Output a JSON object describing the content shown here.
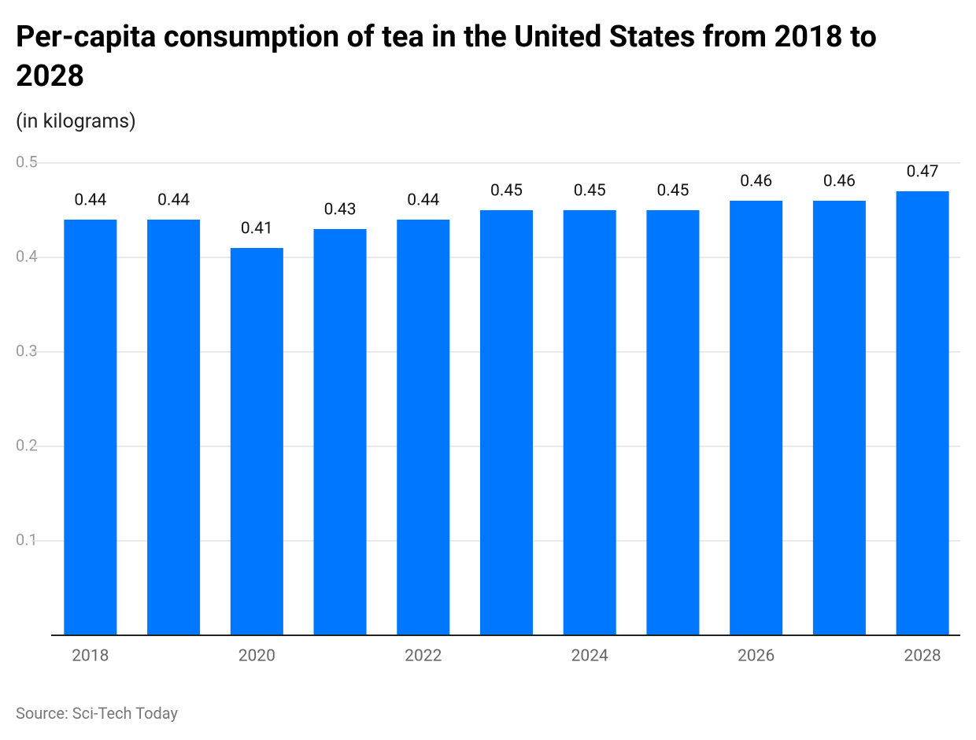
{
  "chart_data": {
    "type": "bar",
    "title": "Per-capita consumption of tea in the United States from 2018 to 2028",
    "subtitle": "(in kilograms)",
    "source": "Source: Sci-Tech Today",
    "categories": [
      "2018",
      null,
      "2020",
      null,
      "2022",
      null,
      "2024",
      null,
      "2026",
      null,
      "2028"
    ],
    "values": [
      0.44,
      0.44,
      0.41,
      0.43,
      0.44,
      0.45,
      0.45,
      0.45,
      0.46,
      0.46,
      0.47
    ],
    "color": "#0077ff",
    "ylim": [
      0,
      0.5
    ],
    "yticks": [
      0.1,
      0.2,
      0.3,
      0.4,
      0.5
    ],
    "grid": true
  }
}
